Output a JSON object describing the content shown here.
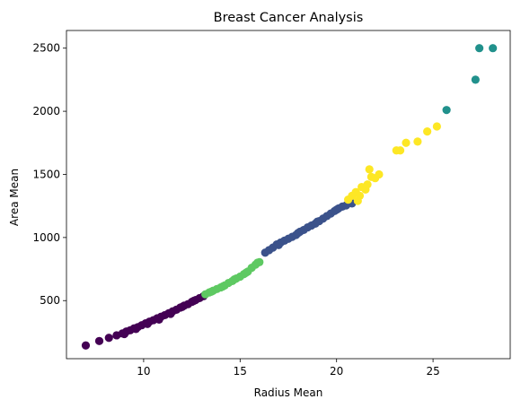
{
  "chart_data": {
    "type": "scatter",
    "title": "Breast Cancer Analysis",
    "xlabel": "Radius Mean",
    "ylabel": "Area Mean",
    "xlim": [
      6.0,
      29.0
    ],
    "ylim": [
      40,
      2640
    ],
    "xticks": [
      10,
      15,
      20,
      25
    ],
    "yticks": [
      500,
      1000,
      1500,
      2000,
      2500
    ],
    "grid": false,
    "legend": "none",
    "series": [
      {
        "name": "cluster-purple",
        "color": "#440154",
        "x": [
          7.0,
          7.7,
          8.2,
          8.6,
          8.9,
          9.1,
          9.3,
          9.5,
          9.7,
          9.9,
          10.1,
          10.3,
          10.5,
          10.7,
          10.9,
          11.1,
          11.3,
          11.5,
          11.7,
          11.9,
          12.1,
          12.3,
          12.5,
          12.7,
          12.9,
          13.1,
          9.0,
          9.6,
          10.2,
          10.8,
          11.4,
          12.0,
          12.6
        ],
        "y": [
          145,
          180,
          205,
          225,
          240,
          255,
          265,
          280,
          290,
          305,
          320,
          333,
          345,
          360,
          372,
          385,
          400,
          415,
          428,
          445,
          460,
          472,
          490,
          505,
          520,
          535,
          235,
          275,
          315,
          350,
          395,
          450,
          498
        ]
      },
      {
        "name": "cluster-green",
        "color": "#5ec962",
        "x": [
          13.2,
          13.4,
          13.6,
          13.8,
          14.0,
          14.2,
          14.4,
          14.6,
          14.8,
          15.0,
          15.2,
          15.4,
          15.6,
          15.8,
          16.0,
          13.5,
          14.1,
          14.7,
          15.3,
          15.9
        ],
        "y": [
          550,
          565,
          578,
          592,
          605,
          620,
          640,
          655,
          675,
          690,
          710,
          730,
          760,
          785,
          805,
          570,
          612,
          668,
          720,
          800
        ]
      },
      {
        "name": "cluster-blue",
        "color": "#3b528b",
        "x": [
          16.3,
          16.5,
          16.7,
          16.9,
          17.1,
          17.3,
          17.5,
          17.7,
          17.9,
          18.1,
          18.3,
          18.5,
          18.7,
          18.9,
          19.1,
          19.3,
          19.5,
          19.7,
          19.9,
          20.1,
          20.3,
          20.5,
          20.8,
          17.0,
          18.0,
          19.0,
          20.0
        ],
        "y": [
          880,
          900,
          920,
          945,
          960,
          975,
          990,
          1005,
          1020,
          1045,
          1060,
          1080,
          1095,
          1110,
          1130,
          1150,
          1170,
          1190,
          1210,
          1230,
          1245,
          1255,
          1270,
          940,
          1035,
          1125,
          1220
        ]
      },
      {
        "name": "cluster-yellow",
        "color": "#fde725",
        "x": [
          20.6,
          20.8,
          21.0,
          21.1,
          21.3,
          21.5,
          21.6,
          21.8,
          22.0,
          22.2,
          21.7,
          21.2,
          23.1,
          23.3,
          23.6,
          24.2,
          24.7,
          25.2
        ],
        "y": [
          1300,
          1330,
          1360,
          1290,
          1400,
          1380,
          1420,
          1480,
          1470,
          1500,
          1540,
          1330,
          1690,
          1690,
          1750,
          1760,
          1840,
          1880
        ]
      },
      {
        "name": "cluster-teal",
        "color": "#21918c",
        "x": [
          25.7,
          27.2,
          27.4,
          28.1
        ],
        "y": [
          2010,
          2250,
          2500,
          2500
        ]
      }
    ]
  }
}
